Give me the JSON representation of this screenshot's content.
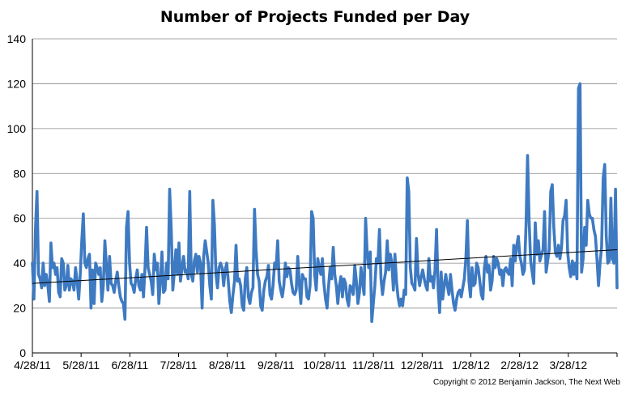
{
  "chart_data": {
    "type": "line",
    "title": "Number of Projects Funded per Day",
    "xlabel": "",
    "ylabel": "",
    "ylim": [
      0,
      140
    ],
    "yticks": [
      0,
      20,
      40,
      60,
      80,
      100,
      120,
      140
    ],
    "xticks": [
      "4/28/11",
      "5/28/11",
      "6/28/11",
      "7/28/11",
      "8/28/11",
      "9/28/11",
      "10/28/11",
      "11/28/11",
      "12/28/11",
      "1/28/12",
      "2/28/12",
      "3/28/12"
    ],
    "grid": "horizontal",
    "legend": "none",
    "series": [
      {
        "line_color": "#3e7ac2",
        "values": [
          40,
          24,
          55,
          72,
          35,
          33,
          29,
          40,
          30,
          35,
          30,
          23,
          49,
          38,
          40,
          35,
          38,
          27,
          25,
          42,
          40,
          28,
          30,
          39,
          28,
          33,
          32,
          28,
          38,
          32,
          24,
          35,
          50,
          62,
          40,
          38,
          42,
          44,
          20,
          37,
          22,
          40,
          38,
          35,
          38,
          23,
          30,
          50,
          39,
          28,
          43,
          31,
          30,
          27,
          32,
          36,
          30,
          25,
          23,
          22,
          15,
          56,
          63,
          40,
          31,
          30,
          27,
          33,
          37,
          30,
          28,
          35,
          25,
          38,
          56,
          38,
          35,
          32,
          26,
          44,
          37,
          40,
          22,
          32,
          45,
          27,
          28,
          40,
          33,
          73,
          55,
          28,
          36,
          46,
          35,
          49,
          32,
          38,
          43,
          36,
          37,
          33,
          72,
          35,
          32,
          41,
          44,
          36,
          43,
          40,
          20,
          43,
          50,
          45,
          40,
          30,
          24,
          68,
          57,
          35,
          29,
          38,
          40,
          38,
          30,
          37,
          40,
          32,
          23,
          18,
          26,
          32,
          48,
          32,
          33,
          30,
          21,
          19,
          33,
          38,
          25,
          22,
          27,
          29,
          64,
          46,
          35,
          32,
          21,
          19,
          28,
          32,
          34,
          39,
          26,
          24,
          30,
          40,
          38,
          50,
          32,
          28,
          25,
          30,
          40,
          34,
          38,
          37,
          31,
          27,
          26,
          28,
          43,
          31,
          22,
          35,
          33,
          33,
          25,
          24,
          30,
          63,
          60,
          35,
          28,
          42,
          38,
          35,
          42,
          31,
          24,
          20,
          30,
          38,
          33,
          47,
          35,
          30,
          22,
          30,
          34,
          25,
          33,
          31,
          24,
          21,
          30,
          29,
          26,
          39,
          32,
          22,
          27,
          38,
          31,
          26,
          60,
          45,
          38,
          45,
          14,
          22,
          30,
          42,
          40,
          55,
          33,
          26,
          32,
          36,
          50,
          37,
          44,
          40,
          28,
          44,
          32,
          25,
          21,
          24,
          21,
          28,
          26,
          78,
          72,
          38,
          31,
          30,
          28,
          51,
          35,
          30,
          34,
          37,
          33,
          30,
          28,
          42,
          32,
          34,
          29,
          37,
          55,
          29,
          18,
          36,
          24,
          30,
          35,
          30,
          26,
          35,
          28,
          22,
          19,
          24,
          27,
          28,
          25,
          29,
          33,
          42,
          59,
          32,
          25,
          38,
          30,
          31,
          40,
          38,
          32,
          26,
          24,
          38,
          43,
          36,
          39,
          28,
          32,
          43,
          38,
          42,
          40,
          35,
          37,
          30,
          37,
          38,
          36,
          35,
          42,
          30,
          48,
          41,
          48,
          52,
          43,
          40,
          35,
          37,
          57,
          88,
          59,
          41,
          36,
          31,
          58,
          44,
          50,
          41,
          44,
          46,
          63,
          36,
          41,
          46,
          72,
          75,
          56,
          45,
          43,
          48,
          42,
          47,
          59,
          61,
          68,
          45,
          38,
          34,
          41,
          35,
          40,
          33,
          118,
          120,
          36,
          42,
          56,
          48,
          68,
          62,
          60,
          60,
          55,
          52,
          42,
          30,
          40,
          47,
          78,
          84,
          52,
          40,
          41,
          69,
          42,
          40,
          73,
          29
        ]
      },
      {
        "style": "trendline",
        "line_color": "#000000",
        "start": 31,
        "end": 46
      }
    ]
  },
  "footer": {
    "copyright": "Copyright  © 2012 Benjamin Jackson, The Next Web"
  }
}
